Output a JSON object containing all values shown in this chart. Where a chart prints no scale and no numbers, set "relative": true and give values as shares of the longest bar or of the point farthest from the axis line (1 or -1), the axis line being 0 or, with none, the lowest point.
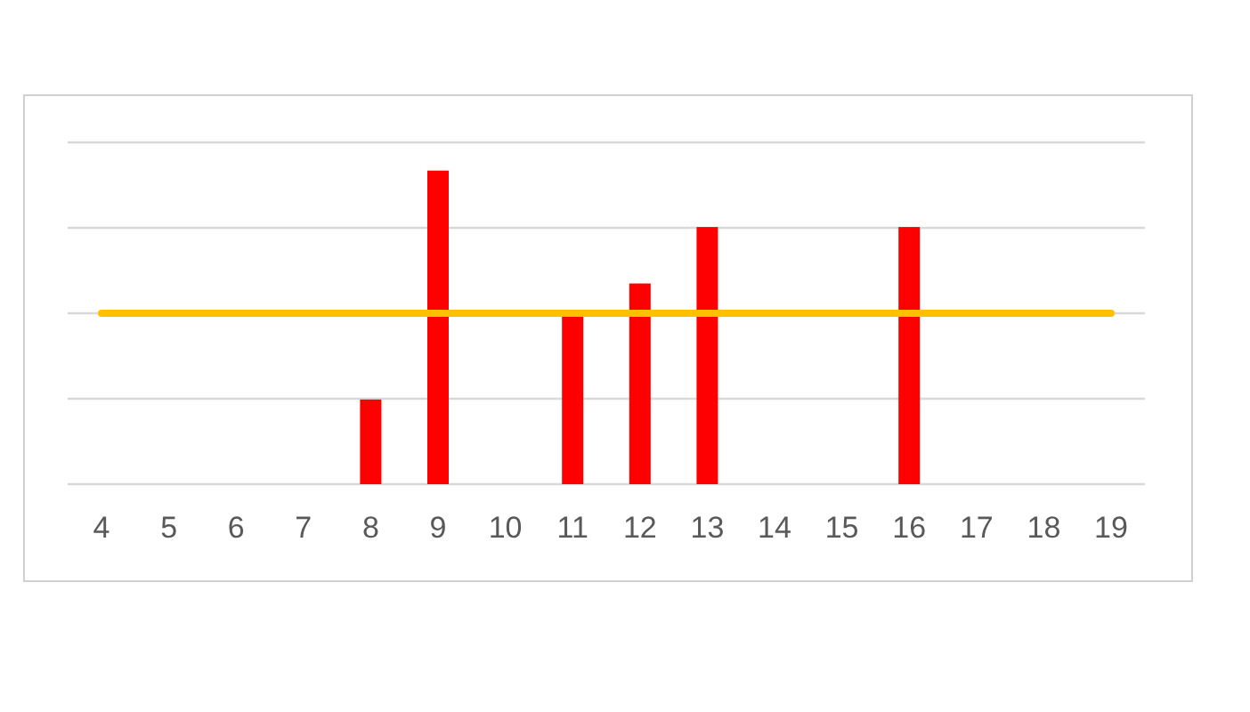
{
  "chart_data": {
    "type": "bar",
    "relative": true,
    "grid": "y",
    "categories": [
      "4",
      "5",
      "6",
      "7",
      "8",
      "9",
      "10",
      "11",
      "12",
      "13",
      "14",
      "15",
      "16",
      "17",
      "18",
      "19"
    ],
    "series": [
      {
        "color": "#ff0000",
        "values": [
          null,
          null,
          null,
          null,
          0.27,
          1,
          null,
          0.55,
          0.64,
          0.82,
          null,
          null,
          0.82,
          null,
          null,
          null
        ]
      },
      {
        "type": "line",
        "color": "#ffc000",
        "values": [
          0.545,
          0.545,
          0.545,
          0.545,
          0.545,
          0.545,
          0.545,
          0.545,
          0.545,
          0.545,
          0.545,
          0.545,
          0.545,
          0.545,
          0.545,
          0.545
        ]
      }
    ]
  }
}
